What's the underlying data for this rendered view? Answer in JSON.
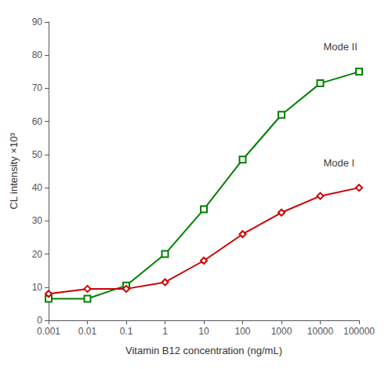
{
  "chart_data": {
    "type": "line",
    "log": "x",
    "grid": false,
    "xlabel": "Vitamin B12 concentration (ng/mL)",
    "ylabel": "CL intensity ×10³",
    "xlim": [
      0.001,
      100000
    ],
    "xticks": [
      0.001,
      0.01,
      0.1,
      1,
      10,
      100,
      1000,
      10000,
      100000
    ],
    "ylim": [
      0,
      90
    ],
    "yticks": [
      0,
      10,
      20,
      30,
      40,
      50,
      60,
      70,
      80,
      90
    ],
    "series": [
      {
        "color": "#008000",
        "marker": "square",
        "x": [
          0.001,
          0.01,
          0.1,
          1,
          10,
          100,
          1000,
          10000,
          100000
        ],
        "values": [
          6.5,
          6.5,
          10.5,
          20.0,
          33.5,
          48.5,
          62.0,
          71.5,
          75.0
        ]
      },
      {
        "color": "#cc0000",
        "marker": "diamond",
        "x": [
          0.001,
          0.01,
          0.1,
          1,
          10,
          100,
          1000,
          10000,
          100000
        ],
        "values": [
          8.0,
          9.5,
          9.5,
          11.5,
          18.0,
          26.0,
          32.5,
          37.5,
          40.0
        ]
      }
    ],
    "annotations": [
      {
        "text": "Mode II",
        "x": 12000,
        "y": 81
      },
      {
        "text": "Mode I",
        "x": 12000,
        "y": 46
      }
    ]
  }
}
